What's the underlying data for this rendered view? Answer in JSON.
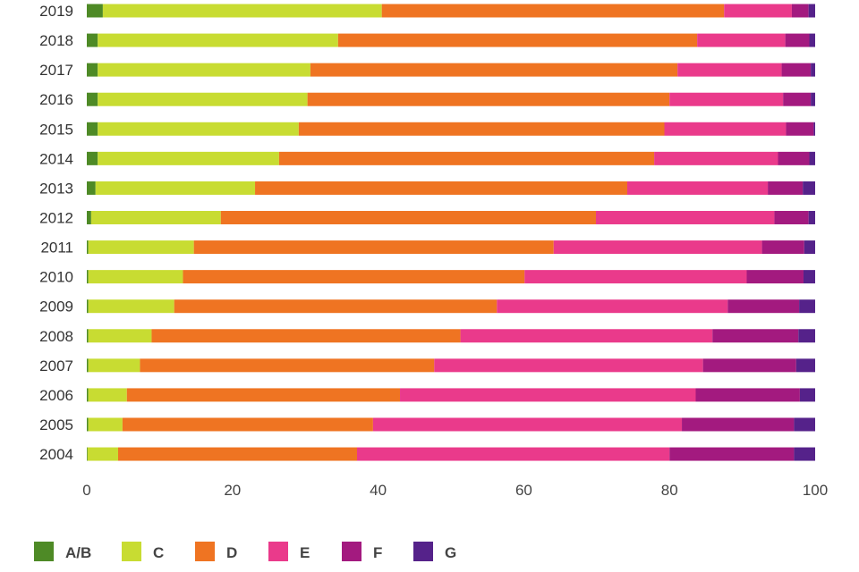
{
  "chart_data": {
    "type": "bar",
    "orientation": "horizontal",
    "stacked": true,
    "title": "",
    "xlabel": "",
    "ylabel": "",
    "xlim": [
      0,
      100
    ],
    "xticks": [
      "0",
      "20",
      "40",
      "60",
      "80",
      "100"
    ],
    "grid": false,
    "legend_position": "bottom-left",
    "categories": [
      "2019",
      "2018",
      "2017",
      "2016",
      "2015",
      "2014",
      "2013",
      "2012",
      "2011",
      "2010",
      "2009",
      "2008",
      "2007",
      "2006",
      "2005",
      "2004"
    ],
    "series": [
      {
        "name": "A/B",
        "color": "#4e8a26",
        "values": [
          2.2,
          1.5,
          1.5,
          1.5,
          1.5,
          1.5,
          1.2,
          0.6,
          0.2,
          0.2,
          0.2,
          0.2,
          0.2,
          0.2,
          0.2,
          0.1
        ]
      },
      {
        "name": "C",
        "color": "#c8dc32",
        "values": [
          38.3,
          33.0,
          29.2,
          28.8,
          27.6,
          24.9,
          21.9,
          17.8,
          14.5,
          13.0,
          11.8,
          8.7,
          7.1,
          5.3,
          4.7,
          4.2
        ]
      },
      {
        "name": "D",
        "color": "#ef7422",
        "values": [
          47.0,
          49.3,
          50.4,
          49.7,
          50.2,
          51.5,
          51.1,
          51.5,
          49.4,
          46.9,
          44.3,
          42.4,
          40.4,
          37.5,
          34.4,
          32.8
        ]
      },
      {
        "name": "E",
        "color": "#ea3a8b",
        "values": [
          9.3,
          12.1,
          14.3,
          15.6,
          16.7,
          17.0,
          19.3,
          24.5,
          28.6,
          30.5,
          31.7,
          34.6,
          36.9,
          40.6,
          42.4,
          42.9
        ]
      },
      {
        "name": "F",
        "color": "#a31a7f",
        "values": [
          2.3,
          3.3,
          4.0,
          3.8,
          3.8,
          4.3,
          4.8,
          4.7,
          5.8,
          7.8,
          9.8,
          11.8,
          12.8,
          14.3,
          15.4,
          17.1
        ]
      },
      {
        "name": "G",
        "color": "#55228a",
        "values": [
          0.9,
          0.8,
          0.6,
          0.6,
          0.2,
          0.8,
          1.7,
          0.9,
          1.5,
          1.6,
          2.2,
          2.3,
          2.6,
          2.1,
          2.9,
          2.9
        ]
      }
    ]
  }
}
